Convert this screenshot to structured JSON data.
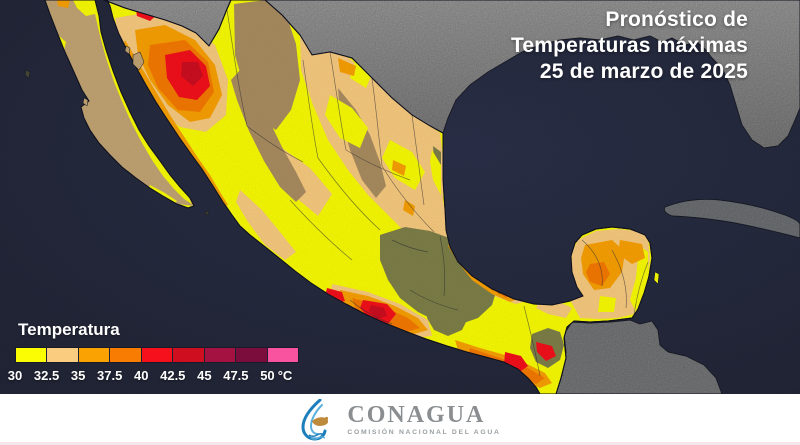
{
  "title": {
    "lines": [
      "Pronóstico de",
      "Temperaturas máximas",
      "25 de marzo de 2025"
    ]
  },
  "legend": {
    "title": "Temperatura",
    "unit": "°C",
    "ticks": [
      "30",
      "32.5",
      "35",
      "37.5",
      "40",
      "42.5",
      "45",
      "47.5",
      "50"
    ],
    "colors": [
      {
        "range": "30-32.5",
        "hex": "#FBFE03"
      },
      {
        "range": "32.5-35",
        "hex": "#FACC80"
      },
      {
        "range": "35-37.5",
        "hex": "#FBA203"
      },
      {
        "range": "37.5-40",
        "hex": "#F87B02"
      },
      {
        "range": "40-42.5",
        "hex": "#F6101B"
      },
      {
        "range": "42.5-45",
        "hex": "#CF0E20"
      },
      {
        "range": "45-47.5",
        "hex": "#A31240"
      },
      {
        "range": "47.5-50",
        "hex": "#7A0D3C"
      },
      {
        "range": ">50",
        "hex": "#F9529F"
      }
    ]
  },
  "map": {
    "description": "Mapa de México con pronóstico de temperaturas máximas",
    "ocean_color": "#262B3F",
    "neighbor_land_color": "#9D9D9D",
    "terrain_brown": "#AC8E61",
    "terrain_olive": "#7F8149",
    "baja_terrain": "#C4A674"
  },
  "footer": {
    "brand": "CONAGUA",
    "subtitle": "COMISIÓN NACIONAL DEL AGUA"
  }
}
